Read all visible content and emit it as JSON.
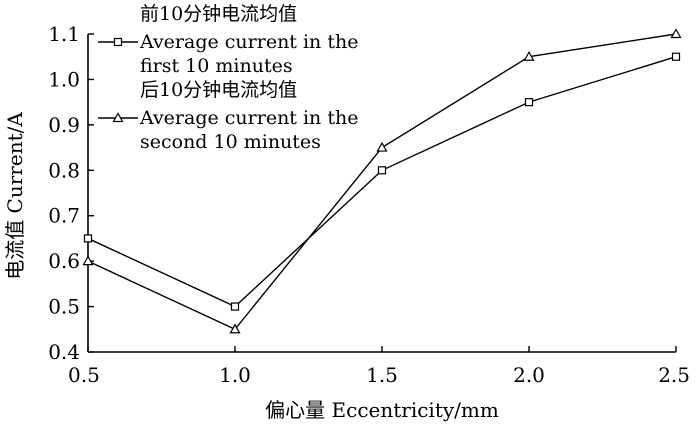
{
  "chart_data": {
    "type": "line",
    "xlabel": "偏心量 Eccentricity/mm",
    "ylabel": "电流值 Current/A",
    "x": [
      0.5,
      1.0,
      1.5,
      2.0,
      2.5
    ],
    "xlim": [
      0.5,
      2.5
    ],
    "ylim": [
      0.4,
      1.1
    ],
    "xticks": [
      "0.5",
      "1.0",
      "1.5",
      "2.0",
      "2.5"
    ],
    "yticks": [
      "0.4",
      "0.5",
      "0.6",
      "0.7",
      "0.8",
      "0.9",
      "1.0",
      "1.1"
    ],
    "grid": false,
    "legend_position": "top-left",
    "series": [
      {
        "name_cn": "前10分钟电流均值",
        "name_en_line1": "Average current in the",
        "name_en_line2": "first 10 minutes",
        "marker": "square",
        "values": [
          0.65,
          0.5,
          0.8,
          0.95,
          1.05
        ]
      },
      {
        "name_cn": "后10分钟电流均值",
        "name_en_line1": "Average current in the",
        "name_en_line2": "second 10 minutes",
        "marker": "triangle",
        "values": [
          0.6,
          0.45,
          0.85,
          1.05,
          1.1
        ]
      }
    ]
  }
}
